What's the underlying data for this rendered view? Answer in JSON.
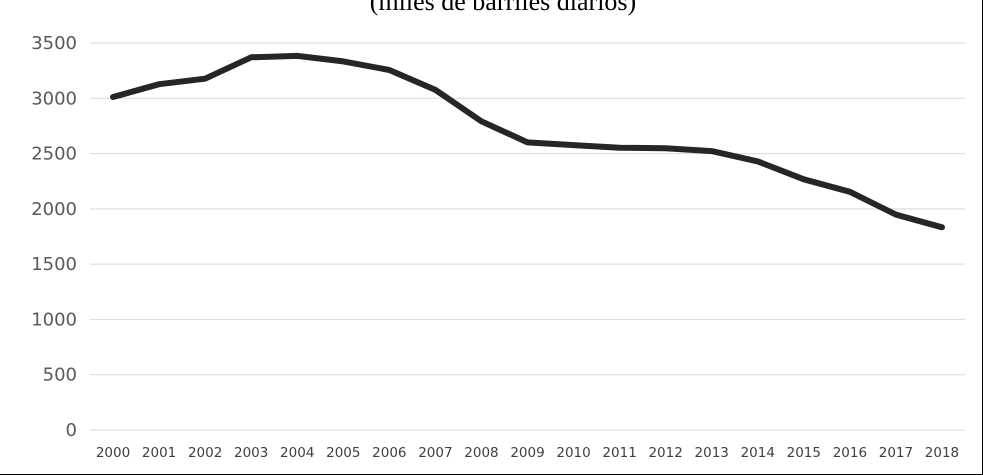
{
  "chart_data": {
    "type": "line",
    "title": "(miles de barriles diarios)",
    "xlabel": "",
    "ylabel": "",
    "ylim": [
      0,
      3500
    ],
    "yticks": [
      0,
      500,
      1000,
      1500,
      2000,
      2500,
      3000,
      3500
    ],
    "grid": true,
    "legend": "none",
    "categories": [
      "2000",
      "2001",
      "2002",
      "2003",
      "2004",
      "2005",
      "2006",
      "2007",
      "2008",
      "2009",
      "2010",
      "2011",
      "2012",
      "2013",
      "2014",
      "2015",
      "2016",
      "2017",
      "2018"
    ],
    "series": [
      {
        "color": "#262626",
        "values": [
          3012,
          3127,
          3177,
          3371,
          3383,
          3334,
          3256,
          3076,
          2792,
          2601,
          2577,
          2553,
          2548,
          2522,
          2429,
          2267,
          2154,
          1948,
          1833
        ]
      }
    ]
  }
}
